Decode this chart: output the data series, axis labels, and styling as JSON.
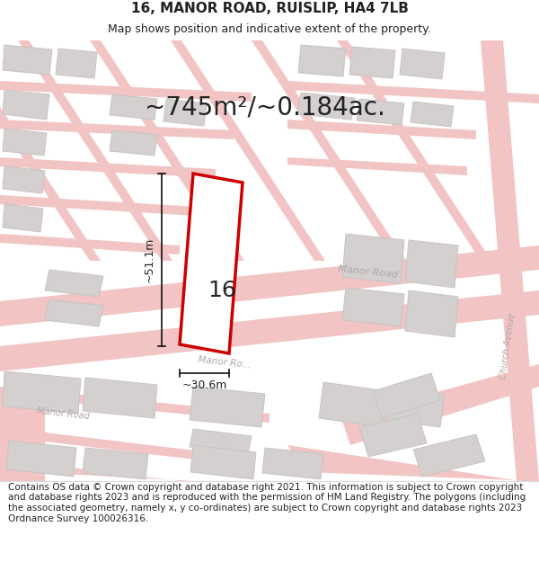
{
  "title": "16, MANOR ROAD, RUISLIP, HA4 7LB",
  "subtitle": "Map shows position and indicative extent of the property.",
  "area_text": "~745m²/~0.184ac.",
  "dim_width": "~30.6m",
  "dim_height": "~51.1m",
  "plot_label": "16",
  "footer": "Contains OS data © Crown copyright and database right 2021. This information is subject to Crown copyright and database rights 2023 and is reproduced with the permission of HM Land Registry. The polygons (including the associated geometry, namely x, y co-ordinates) are subject to Crown copyright and database rights 2023 Ordnance Survey 100026316.",
  "title_fontsize": 11,
  "subtitle_fontsize": 9,
  "area_fontsize": 20,
  "label_fontsize": 18,
  "footer_fontsize": 7.5,
  "map_bg": "#f7f0f0",
  "road_color": "#f2c4c4",
  "road_edge": "#e8b0b0",
  "building_fill": "#d4d0d0",
  "building_edge": "#c8c4c4",
  "plot_fill": "#ffffff",
  "plot_edge": "#cc0000",
  "dim_line_color": "#111111",
  "text_color": "#222222",
  "road_label_color": "#b0a8a8",
  "separator_color": "#dddddd"
}
